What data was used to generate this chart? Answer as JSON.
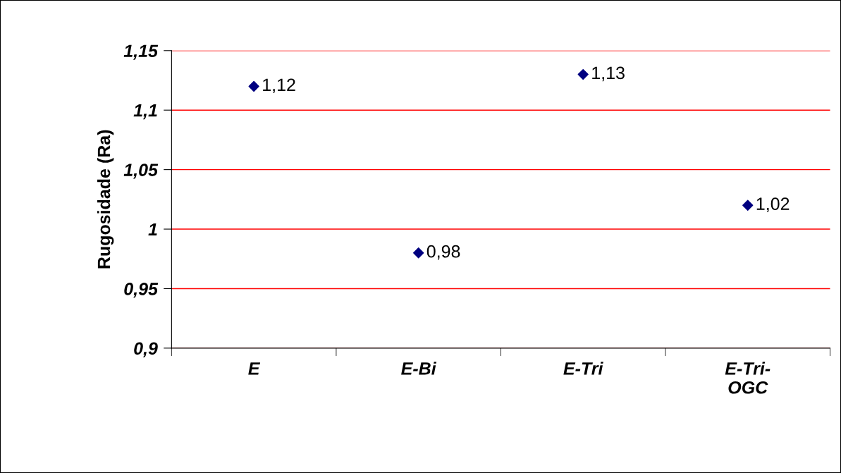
{
  "chart_data": {
    "type": "scatter",
    "ylabel": "Rugosidade (Ra)",
    "categories": [
      "E",
      "E-Bi",
      "E-Tri",
      "E-Tri-\nOGC"
    ],
    "series": [
      {
        "color": "#000080",
        "values": [
          1.12,
          0.98,
          1.13,
          1.02
        ],
        "value_labels": [
          "1,12",
          "0,98",
          "1,13",
          "1,02"
        ]
      }
    ],
    "ylim": [
      0.9,
      1.15
    ],
    "yticks": [
      {
        "value": 0.9,
        "label": "0,9"
      },
      {
        "value": 0.95,
        "label": "0,95"
      },
      {
        "value": 1,
        "label": "1"
      },
      {
        "value": 1.05,
        "label": "1,05"
      },
      {
        "value": 1.1,
        "label": "1,1"
      },
      {
        "value": 1.15,
        "label": "1,15"
      }
    ],
    "grid": "y",
    "marker": "diamond",
    "legend": false
  }
}
